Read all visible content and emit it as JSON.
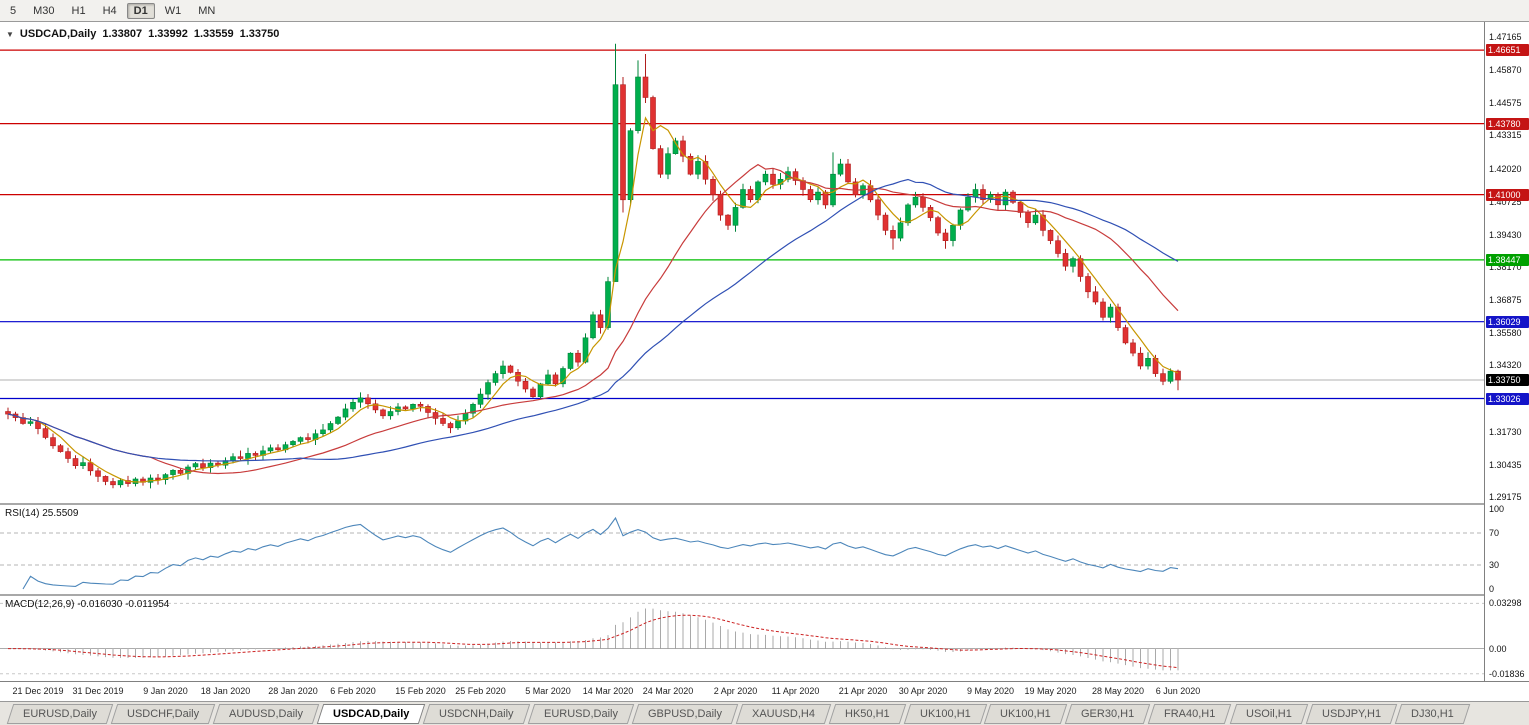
{
  "toolbar": {
    "timeframes": [
      {
        "label": "5",
        "active": false
      },
      {
        "label": "M30",
        "active": false
      },
      {
        "label": "H1",
        "active": false
      },
      {
        "label": "H4",
        "active": false
      },
      {
        "label": "D1",
        "active": true
      },
      {
        "label": "W1",
        "active": false
      },
      {
        "label": "MN",
        "active": false
      }
    ]
  },
  "chart_header": {
    "collapse_icon": "▼",
    "symbol": "USDCAD,Daily",
    "open": "1.33807",
    "high": "1.33992",
    "low": "1.33559",
    "close": "1.33750"
  },
  "price_axis": {
    "ticks": [
      {
        "text": "1.47165",
        "price": 1.47165
      },
      {
        "text": "1.45870",
        "price": 1.4587
      },
      {
        "text": "1.44575",
        "price": 1.44575
      },
      {
        "text": "1.43315",
        "price": 1.43315
      },
      {
        "text": "1.42020",
        "price": 1.4202
      },
      {
        "text": "1.40725",
        "price": 1.40725
      },
      {
        "text": "1.39430",
        "price": 1.3943
      },
      {
        "text": "1.38170",
        "price": 1.3817
      },
      {
        "text": "1.36875",
        "price": 1.36875
      },
      {
        "text": "1.35580",
        "price": 1.3558
      },
      {
        "text": "1.34320",
        "price": 1.3432
      },
      {
        "text": "1.31730",
        "price": 1.3173
      },
      {
        "text": "1.30435",
        "price": 1.30435
      },
      {
        "text": "1.29175",
        "price": 1.29175
      }
    ],
    "badges": [
      {
        "text": "1.46651",
        "price": 1.46651,
        "bg": "#c41414"
      },
      {
        "text": "1.43780",
        "price": 1.4378,
        "bg": "#c41414"
      },
      {
        "text": "1.41000",
        "price": 1.41,
        "bg": "#c41414"
      },
      {
        "text": "1.38447",
        "price": 1.38447,
        "bg": "#00a000"
      },
      {
        "text": "1.36029",
        "price": 1.36029,
        "bg": "#1414c8"
      },
      {
        "text": "1.33026",
        "price": 1.33026,
        "bg": "#1414c8"
      }
    ],
    "current_badge": {
      "text": "1.33750",
      "price": 1.3375,
      "bg": "#000000"
    }
  },
  "time_axis": {
    "labels": [
      {
        "text": "21 Dec 2019",
        "candle": 4
      },
      {
        "text": "31 Dec 2019",
        "candle": 12
      },
      {
        "text": "9 Jan 2020",
        "candle": 21
      },
      {
        "text": "18 Jan 2020",
        "candle": 29
      },
      {
        "text": "28 Jan 2020",
        "candle": 38
      },
      {
        "text": "6 Feb 2020",
        "candle": 46
      },
      {
        "text": "15 Feb 2020",
        "candle": 55
      },
      {
        "text": "25 Feb 2020",
        "candle": 63
      },
      {
        "text": "5 Mar 2020",
        "candle": 72
      },
      {
        "text": "14 Mar 2020",
        "candle": 80
      },
      {
        "text": "24 Mar 2020",
        "candle": 88
      },
      {
        "text": "2 Apr 2020",
        "candle": 97
      },
      {
        "text": "11 Apr 2020",
        "candle": 105
      },
      {
        "text": "21 Apr 2020",
        "candle": 114
      },
      {
        "text": "30 Apr 2020",
        "candle": 122
      },
      {
        "text": "9 May 2020",
        "candle": 131
      },
      {
        "text": "19 May 2020",
        "candle": 139
      },
      {
        "text": "28 May 2020",
        "candle": 148
      },
      {
        "text": "6 Jun 2020",
        "candle": 156
      }
    ]
  },
  "rsi_panel": {
    "label": "RSI(14) 25.5509",
    "line_color": "#4c86ba",
    "scale": [
      {
        "text": "100",
        "value": 100
      },
      {
        "text": "70",
        "value": 70
      },
      {
        "text": "30",
        "value": 30
      },
      {
        "text": "0",
        "value": 0
      }
    ],
    "guides": [
      70,
      30
    ]
  },
  "macd_panel": {
    "label": "MACD(12,26,9) -0.016030 -0.011954",
    "histogram_color": "#a9a9a9",
    "signal_color": "#cc2222",
    "scale": [
      {
        "text": "0.03298",
        "value": 0.03298
      },
      {
        "text": "0.00",
        "value": 0
      },
      {
        "text": "-0.01836",
        "value": -0.01836
      }
    ]
  },
  "tabs": [
    {
      "label": "EURUSD,Daily",
      "active": false
    },
    {
      "label": "USDCHF,Daily",
      "active": false
    },
    {
      "label": "AUDUSD,Daily",
      "active": false
    },
    {
      "label": "USDCAD,Daily",
      "active": true
    },
    {
      "label": "USDCNH,Daily",
      "active": false
    },
    {
      "label": "EURUSD,Daily",
      "active": false
    },
    {
      "label": "GBPUSD,Daily",
      "active": false
    },
    {
      "label": "XAUUSD,H4",
      "active": false
    },
    {
      "label": "HK50,H1",
      "active": false
    },
    {
      "label": "UK100,H1",
      "active": false
    },
    {
      "label": "UK100,H1",
      "active": false
    },
    {
      "label": "GER30,H1",
      "active": false
    },
    {
      "label": "FRA40,H1",
      "active": false
    },
    {
      "label": "USOil,H1",
      "active": false
    },
    {
      "label": "USDJPY,H1",
      "active": false
    },
    {
      "label": "DJ30,H1",
      "active": false
    }
  ],
  "chart_data": {
    "type": "candlestick",
    "symbol": "USDCAD",
    "timeframe": "Daily",
    "title": "USDCAD,Daily",
    "last_quote": {
      "open": 1.33807,
      "high": 1.33992,
      "low": 1.33559,
      "close": 1.3375
    },
    "price_range": {
      "top": 1.47165,
      "bottom": 1.29175
    },
    "first_open": 1.3252,
    "closes": [
      1.3242,
      1.3228,
      1.3205,
      1.3212,
      1.3185,
      1.315,
      1.3118,
      1.3095,
      1.3068,
      1.304,
      1.3052,
      1.302,
      1.2998,
      1.2978,
      1.2965,
      1.2982,
      1.297,
      1.2988,
      1.2975,
      1.2992,
      1.2985,
      1.3005,
      1.3022,
      1.301,
      1.3035,
      1.3048,
      1.3032,
      1.305,
      1.3042,
      1.306,
      1.3075,
      1.3068,
      1.3088,
      1.308,
      1.3098,
      1.311,
      1.3102,
      1.3122,
      1.3135,
      1.315,
      1.3142,
      1.3165,
      1.318,
      1.3205,
      1.323,
      1.3262,
      1.3288,
      1.3305,
      1.3282,
      1.3258,
      1.3235,
      1.3252,
      1.327,
      1.3262,
      1.328,
      1.3272,
      1.3248,
      1.3225,
      1.3205,
      1.3188,
      1.3215,
      1.3245,
      1.328,
      1.332,
      1.3365,
      1.34,
      1.343,
      1.3405,
      1.337,
      1.334,
      1.331,
      1.336,
      1.3395,
      1.336,
      1.342,
      1.348,
      1.3445,
      1.354,
      1.363,
      1.358,
      1.376,
      1.453,
      1.408,
      1.435,
      1.456,
      1.448,
      1.428,
      1.418,
      1.426,
      1.431,
      1.425,
      1.418,
      1.423,
      1.416,
      1.41,
      1.402,
      1.398,
      1.405,
      1.412,
      1.408,
      1.415,
      1.418,
      1.414,
      1.416,
      1.419,
      1.4155,
      1.412,
      1.408,
      1.411,
      1.406,
      1.418,
      1.422,
      1.415,
      1.41,
      1.4135,
      1.408,
      1.402,
      1.396,
      1.393,
      1.399,
      1.406,
      1.409,
      1.405,
      1.401,
      1.395,
      1.392,
      1.398,
      1.404,
      1.409,
      1.412,
      1.408,
      1.41,
      1.406,
      1.411,
      1.407,
      1.403,
      1.399,
      1.402,
      1.396,
      1.392,
      1.387,
      1.382,
      1.385,
      1.378,
      1.372,
      1.368,
      1.362,
      1.366,
      1.358,
      1.352,
      1.348,
      1.343,
      1.346,
      1.34,
      1.337,
      1.341,
      1.3375
    ],
    "wick_overrides": {
      "81": [
        1.469,
        1.376
      ],
      "82": [
        1.456,
        1.403
      ],
      "84": [
        1.4625,
        null
      ],
      "85": [
        1.465,
        null
      ],
      "110": [
        1.4265,
        null
      ],
      "118": [
        null,
        1.3885
      ],
      "125": [
        null,
        1.3888
      ],
      "156": [
        null,
        1.3335
      ]
    },
    "candle_colors": {
      "bull_fill": "#00ae4d",
      "bull_stroke": "#00843a",
      "bear_fill": "#e03232",
      "bear_stroke": "#b01e1e"
    },
    "moving_averages": [
      {
        "name": "ma-fast",
        "period": 5,
        "color": "#c89600"
      },
      {
        "name": "ma-medium",
        "period": 20,
        "color": "#c83c3c"
      },
      {
        "name": "ma-slow",
        "period": 40,
        "color": "#3050b4"
      }
    ],
    "horizontal_levels": [
      {
        "price": 1.46651,
        "color": "#cc0000"
      },
      {
        "price": 1.4378,
        "color": "#cc0000"
      },
      {
        "price": 1.41,
        "color": "#cc0000"
      },
      {
        "price": 1.38447,
        "color": "#00be00"
      },
      {
        "price": 1.36029,
        "color": "#0000cc"
      },
      {
        "price": 1.33026,
        "color": "#0000cc"
      }
    ],
    "current_price": 1.3375,
    "indicators": [
      {
        "name": "RSI",
        "period": 14,
        "value": 25.5509,
        "guides": [
          70,
          30
        ],
        "range": [
          0,
          100
        ]
      },
      {
        "name": "MACD",
        "fast": 12,
        "slow": 26,
        "signal": 9,
        "value": -0.01603,
        "signal_value": -0.011954
      }
    ]
  }
}
